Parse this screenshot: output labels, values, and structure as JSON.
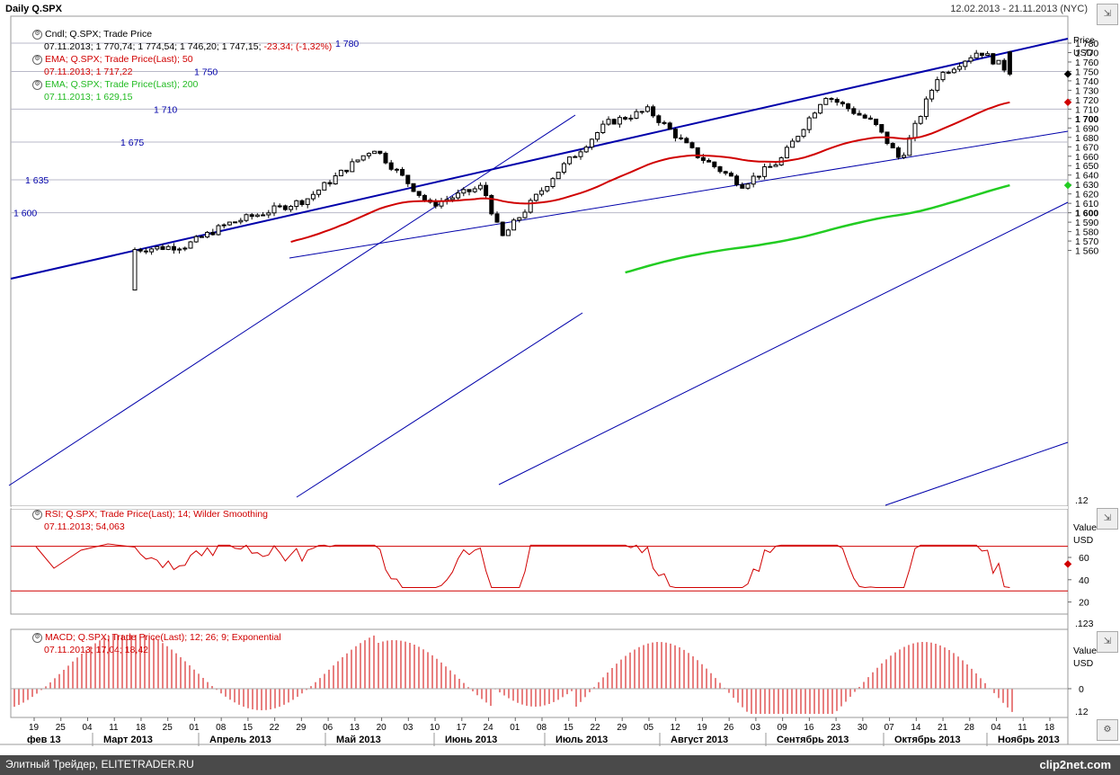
{
  "header": {
    "title": "Daily Q.SPX",
    "date_range": "12.02.2013 - 21.11.2013 (NYC)"
  },
  "price_panel": {
    "legend": [
      {
        "name": "Cndl; Q.SPX; Trade Price",
        "values": "07.11.2013; 1 770,74; 1 774,54; 1 746,20; 1 747,15;",
        "change": "-23,34; (-1,32%)",
        "color": "#000000"
      },
      {
        "name": "EMA; Q.SPX; Trade Price(Last);  50",
        "values": "07.11.2013; 1 717,22",
        "color": "#d00000"
      },
      {
        "name": "EMA; Q.SPX; Trade Price(Last);  200",
        "values": "07.11.2013; 1 629,15",
        "color": "#22cc22"
      }
    ],
    "axis_title": "Price",
    "axis_unit": "USD",
    "ticks": [
      "1 780",
      "1 770",
      "1 760",
      "1 750",
      "1 740",
      "1 730",
      "1 720",
      "1 710",
      "1 700",
      "1 690",
      "1 680",
      "1 670",
      "1 660",
      "1 650",
      "1 640",
      "1 630",
      "1 620",
      "1 610",
      "1 600",
      "1 590",
      "1 580",
      "1 570",
      "1 560"
    ],
    "bold_ticks": [
      "1 700",
      "1 600"
    ],
    "corner": ".12",
    "line_labels": [
      "1 780",
      "1 750",
      "1 710",
      "1 675",
      "1 635",
      "1 600"
    ]
  },
  "rsi_panel": {
    "legend": {
      "name": "RSI; Q.SPX; Trade Price(Last);  14; Wilder Smoothing",
      "values": "07.11.2013; 54,063",
      "color": "#d00000"
    },
    "axis_title": "Value",
    "axis_unit": "USD",
    "ticks": [
      "60",
      "40",
      "20"
    ],
    "corner": ".123"
  },
  "macd_panel": {
    "legend": {
      "name": "MACD; Q.SPX; Trade Price(Last);  12; 26; 9; Exponential",
      "values": "07.11.2013; 17,04; 18,42",
      "color": "#d00000"
    },
    "axis_title": "Value",
    "axis_unit": "USD",
    "ticks": [
      "0"
    ],
    "corner": ".12"
  },
  "x_axis": {
    "days": [
      "19",
      "25",
      "04",
      "11",
      "18",
      "25",
      "01",
      "08",
      "15",
      "22",
      "29",
      "06",
      "13",
      "20",
      "03",
      "10",
      "17",
      "24",
      "01",
      "08",
      "15",
      "22",
      "29",
      "05",
      "12",
      "19",
      "26",
      "03",
      "09",
      "16",
      "23",
      "30",
      "07",
      "14",
      "21",
      "28",
      "04",
      "11",
      "18"
    ],
    "months": [
      "фев 13",
      "Март 2013",
      "Апрель 2013",
      "Май 2013",
      "Июнь 2013",
      "Июль 2013",
      "Август 2013",
      "Сентябрь 2013",
      "Октябрь 2013",
      "Ноябрь 2013"
    ]
  },
  "footer": {
    "text": "Элитный Трейдер, ELITETRADER.RU",
    "brand": "clip2net.com"
  },
  "colors": {
    "ema50": "#d00000",
    "ema200": "#22cc22",
    "trend": "#0000aa",
    "rsi": "#d00000",
    "macd": "#d00000"
  },
  "chart_data": {
    "type": "candlestick",
    "title": "Daily Q.SPX",
    "x_range": [
      "2013-02-12",
      "2013-11-21"
    ],
    "ylim": [
      1555,
      1800
    ],
    "candles_weekly_close": [
      {
        "x": "2013-03-01",
        "close": 1518
      },
      {
        "x": "2013-03-15",
        "close": 1560
      },
      {
        "x": "2013-04-01",
        "close": 1565
      },
      {
        "x": "2013-04-12",
        "close": 1588
      },
      {
        "x": "2013-05-03",
        "close": 1614
      },
      {
        "x": "2013-05-21",
        "close": 1669
      },
      {
        "x": "2013-06-05",
        "close": 1608
      },
      {
        "x": "2013-06-19",
        "close": 1628
      },
      {
        "x": "2013-06-24",
        "close": 1573
      },
      {
        "x": "2013-07-08",
        "close": 1640
      },
      {
        "x": "2013-07-22",
        "close": 1695
      },
      {
        "x": "2013-08-02",
        "close": 1709
      },
      {
        "x": "2013-08-15",
        "close": 1661
      },
      {
        "x": "2013-08-27",
        "close": 1630
      },
      {
        "x": "2013-09-06",
        "close": 1655
      },
      {
        "x": "2013-09-18",
        "close": 1725
      },
      {
        "x": "2013-10-01",
        "close": 1695
      },
      {
        "x": "2013-10-08",
        "close": 1656
      },
      {
        "x": "2013-10-18",
        "close": 1745
      },
      {
        "x": "2013-10-29",
        "close": 1772
      },
      {
        "x": "2013-11-07",
        "close": 1747.15
      }
    ],
    "last_candle": {
      "x": "2013-11-07",
      "open": 1770.74,
      "high": 1774.54,
      "low": 1746.2,
      "close": 1747.15
    },
    "series": [
      {
        "name": "EMA 50",
        "last": 1717.22
      },
      {
        "name": "EMA 200",
        "last": 1629.15
      }
    ],
    "rsi_last": 54.063,
    "macd_last": [
      17.04,
      18.42
    ]
  }
}
